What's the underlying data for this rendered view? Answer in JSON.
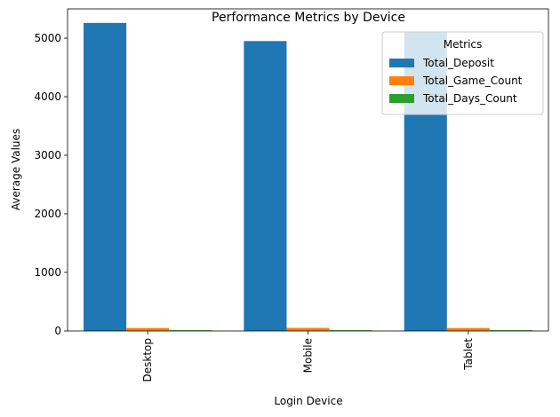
{
  "chart_data": {
    "type": "bar",
    "title": "Performance Metrics by Device",
    "xlabel": "Login Device",
    "ylabel": "Average Values",
    "categories": [
      "Desktop",
      "Mobile",
      "Tablet"
    ],
    "series": [
      {
        "name": "Total_Deposit",
        "color": "#1f77b4",
        "values": [
          5260,
          4950,
          5100
        ]
      },
      {
        "name": "Total_Game_Count",
        "color": "#ff7f0e",
        "values": [
          50,
          52,
          50
        ]
      },
      {
        "name": "Total_Days_Count",
        "color": "#2ca02c",
        "values": [
          13,
          13,
          13
        ]
      }
    ],
    "ylim": [
      0,
      5500
    ],
    "yticks": [
      "0",
      "1000",
      "2000",
      "3000",
      "4000",
      "5000"
    ],
    "legend": {
      "title": "Metrics",
      "placement": "top-right"
    },
    "grid": false
  }
}
